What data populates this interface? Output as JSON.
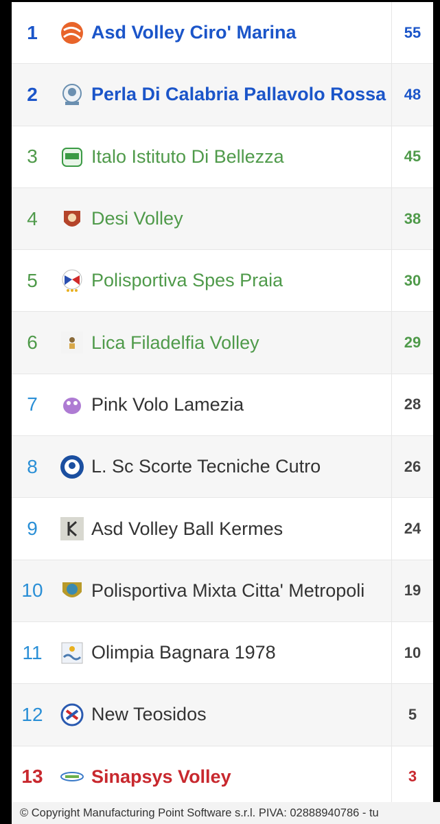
{
  "standings": [
    {
      "rank": "1",
      "team": "Asd Volley Ciro' Marina",
      "points": "55",
      "zone": "promo",
      "logo": "volleyball-swirl-icon",
      "logo_color": "#e8642a"
    },
    {
      "rank": "2",
      "team": "Perla Di Calabria Pallavolo Rossa",
      "points": "48",
      "zone": "promo",
      "logo": "crest-emblem-icon",
      "logo_color": "#6a8fb0"
    },
    {
      "rank": "3",
      "team": "Italo Istituto Di Bellezza",
      "points": "45",
      "zone": "playoff",
      "logo": "green-team-badge-icon",
      "logo_color": "#3a9a44"
    },
    {
      "rank": "4",
      "team": "Desi Volley",
      "points": "38",
      "zone": "playoff",
      "logo": "brown-shield-icon",
      "logo_color": "#b4442a"
    },
    {
      "rank": "5",
      "team": "Polisportiva Spes Praia",
      "points": "30",
      "zone": "playoff",
      "logo": "flag-crest-icon",
      "logo_color": "#2a4fb0"
    },
    {
      "rank": "6",
      "team": "Lica Filadelfia Volley",
      "points": "29",
      "zone": "playoff",
      "logo": "small-figure-icon",
      "logo_color": "#8a6a3a"
    },
    {
      "rank": "7",
      "team": "Pink Volo Lamezia",
      "points": "28",
      "zone": "mid",
      "logo": "purple-mascot-icon",
      "logo_color": "#9a5ac8"
    },
    {
      "rank": "8",
      "team": "L. Sc Scorte Tecniche Cutro",
      "points": "26",
      "zone": "mid",
      "logo": "blue-round-badge-icon",
      "logo_color": "#1b4fa0"
    },
    {
      "rank": "9",
      "team": "Asd Volley Ball Kermes",
      "points": "24",
      "zone": "mid",
      "logo": "k-letter-badge-icon",
      "logo_color": "#555555"
    },
    {
      "rank": "10",
      "team": "Polisportiva Mixta Citta' Metropoli",
      "points": "19",
      "zone": "mid",
      "logo": "gold-shield-icon",
      "logo_color": "#b89a2a"
    },
    {
      "rank": "11",
      "team": "Olimpia Bagnara 1978",
      "points": "10",
      "zone": "mid",
      "logo": "seaside-badge-icon",
      "logo_color": "#4a7ab0"
    },
    {
      "rank": "12",
      "team": "New Teosidos",
      "points": "5",
      "zone": "mid",
      "logo": "blue-red-crest-icon",
      "logo_color": "#2a5ab0"
    },
    {
      "rank": "13",
      "team": "Sinapsys Volley",
      "points": "3",
      "zone": "releg",
      "logo": "wordmark-logo-icon",
      "logo_color": "#3a7ac8"
    }
  ],
  "footer": {
    "text": "© Copyright Manufacturing Point Software s.r.l. PIVA: 02888940786 - tu"
  }
}
